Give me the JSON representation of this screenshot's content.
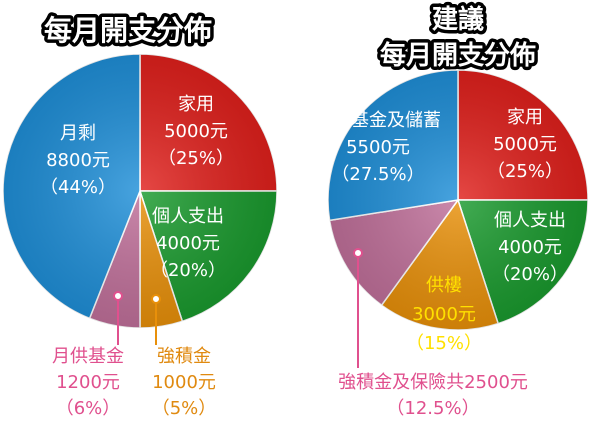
{
  "chart_data": [
    {
      "type": "pie",
      "title": "每月開支分佈",
      "slices": [
        {
          "label": "家用",
          "value": 5000,
          "value_text": "5000元",
          "pct_text": "（25%）",
          "color": "#e0201c"
        },
        {
          "label": "個人支出",
          "value": 4000,
          "value_text": "4000元",
          "pct_text": "（20%）",
          "color": "#1a9a2e"
        },
        {
          "label": "強積金",
          "value": 1000,
          "value_text": "1000元",
          "pct_text": "（5%）",
          "color": "#e8900a"
        },
        {
          "label": "月供基金",
          "value": 1200,
          "value_text": "1200元",
          "pct_text": "（6%）",
          "color": "#c0709a"
        },
        {
          "label": "月剩",
          "value": 8800,
          "value_text": "8800元",
          "pct_text": "（44%）",
          "color": "#1f8fd8"
        }
      ]
    },
    {
      "type": "pie",
      "title": [
        "建議",
        "每月開支分佈"
      ],
      "slices": [
        {
          "label": "家用",
          "value": 5000,
          "value_text": "5000元",
          "pct_text": "（25%）",
          "color": "#e0201c"
        },
        {
          "label": "個人支出",
          "value": 4000,
          "value_text": "4000元",
          "pct_text": "（20%）",
          "color": "#1a9a2e"
        },
        {
          "label": "供樓",
          "value": 3000,
          "value_text": "3000元",
          "pct_text": "（15%）",
          "color": "#e8900a"
        },
        {
          "label": "強積金及保險共2500元",
          "value": 2500,
          "pct_text": "（12.5%）",
          "color": "#c0709a"
        },
        {
          "label": "月供基金及儲蓄",
          "value": 5500,
          "value_text": "5500元",
          "pct_text": "（27.5%）",
          "color": "#1f8fd8"
        }
      ]
    }
  ]
}
